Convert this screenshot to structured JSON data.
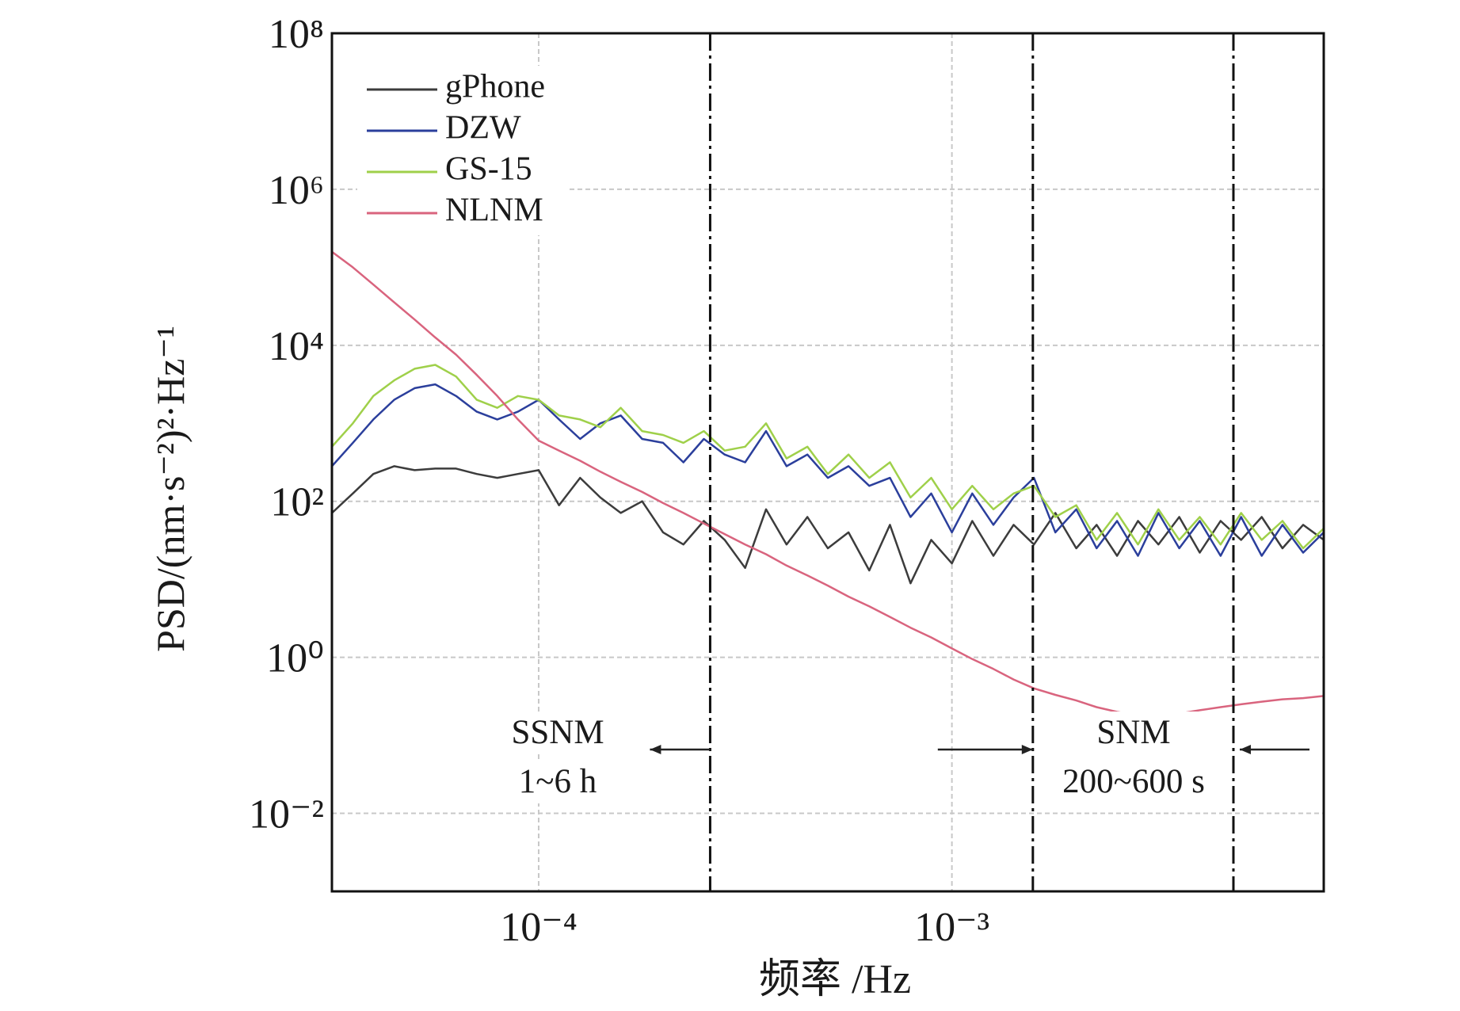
{
  "chart_data": {
    "type": "line",
    "log_x": true,
    "log_y": true,
    "grid": true,
    "x_label": "频率 /Hz",
    "y_label": "PSD/(nm·s⁻²)²·Hz⁻¹",
    "xlim": [
      3.16e-05,
      0.00794
    ],
    "ylim": [
      0.001,
      100000000
    ],
    "xticks": [
      {
        "value": 0.0001,
        "label": "10⁻⁴"
      },
      {
        "value": 0.001,
        "label": "10⁻³"
      }
    ],
    "yticks": [
      {
        "value": 0.01,
        "label": "10⁻²"
      },
      {
        "value": 1,
        "label": "10⁰"
      },
      {
        "value": 100,
        "label": "10²"
      },
      {
        "value": 10000,
        "label": "10⁴"
      },
      {
        "value": 1000000,
        "label": "10⁶"
      },
      {
        "value": 100000000,
        "label": "10⁸"
      }
    ],
    "x": [
      3.16e-05,
      3.55e-05,
      3.98e-05,
      4.47e-05,
      5.01e-05,
      5.62e-05,
      6.31e-05,
      7.08e-05,
      7.94e-05,
      8.91e-05,
      0.0001,
      0.000112,
      0.000126,
      0.000141,
      0.000158,
      0.000178,
      0.0002,
      0.000224,
      0.000251,
      0.000282,
      0.000316,
      0.000355,
      0.000398,
      0.000447,
      0.000501,
      0.000562,
      0.000631,
      0.000708,
      0.000794,
      0.000891,
      0.001,
      0.00112,
      0.00126,
      0.00141,
      0.00158,
      0.00178,
      0.002,
      0.00224,
      0.00251,
      0.00282,
      0.00316,
      0.00355,
      0.00398,
      0.00447,
      0.00501,
      0.00562,
      0.00631,
      0.00708,
      0.00794
    ],
    "series": [
      {
        "name": "gPhone",
        "color": "#3c3c3c",
        "values": [
          71,
          126,
          224,
          282,
          251,
          263,
          263,
          224,
          200,
          224,
          251,
          89,
          200,
          112,
          71,
          100,
          40,
          28,
          56,
          32,
          14,
          79,
          28,
          63,
          25,
          40,
          13,
          50,
          8.9,
          32,
          16,
          56,
          20,
          50,
          28,
          71,
          25,
          50,
          20,
          56,
          28,
          63,
          22,
          56,
          32,
          63,
          25,
          50,
          32
        ]
      },
      {
        "name": "DZW",
        "color": "#2b3f9c",
        "values": [
          282,
          562,
          1120,
          2000,
          2820,
          3160,
          2240,
          1410,
          1120,
          1410,
          2000,
          1120,
          631,
          1000,
          1260,
          631,
          562,
          316,
          631,
          398,
          316,
          794,
          282,
          398,
          200,
          282,
          158,
          200,
          63,
          126,
          40,
          126,
          50,
          112,
          200,
          40,
          79,
          25,
          56,
          20,
          71,
          25,
          56,
          20,
          63,
          20,
          50,
          22,
          40
        ]
      },
      {
        "name": "GS-15",
        "color": "#9fd04a",
        "values": [
          501,
          1000,
          2240,
          3550,
          5010,
          5620,
          3980,
          2000,
          1580,
          2240,
          2000,
          1260,
          1120,
          891,
          1580,
          794,
          708,
          562,
          794,
          447,
          501,
          1000,
          355,
          501,
          224,
          398,
          200,
          316,
          112,
          200,
          79,
          158,
          79,
          126,
          158,
          63,
          89,
          32,
          71,
          28,
          79,
          32,
          63,
          28,
          71,
          32,
          56,
          25,
          45
        ]
      },
      {
        "name": "NLNM",
        "color": "#d9647e",
        "values": [
          158000,
          100000,
          60000,
          35500,
          21400,
          12600,
          7600,
          4170,
          2240,
          1120,
          600,
          447,
          331,
          240,
          178,
          132,
          95,
          71,
          52,
          38,
          28,
          21,
          15,
          11.2,
          8.3,
          6.0,
          4.5,
          3.3,
          2.4,
          1.8,
          1.3,
          0.95,
          0.71,
          0.52,
          0.4,
          0.33,
          0.28,
          0.23,
          0.2,
          0.18,
          0.17,
          0.19,
          0.21,
          0.23,
          0.25,
          0.27,
          0.29,
          0.3,
          0.32
        ]
      }
    ],
    "region_bounds": [
      0.00026,
      0.00157,
      0.0048
    ],
    "annotations": [
      [
        "SSNM",
        "1~6 h"
      ],
      [
        "SNM",
        "200~600 s"
      ]
    ]
  }
}
